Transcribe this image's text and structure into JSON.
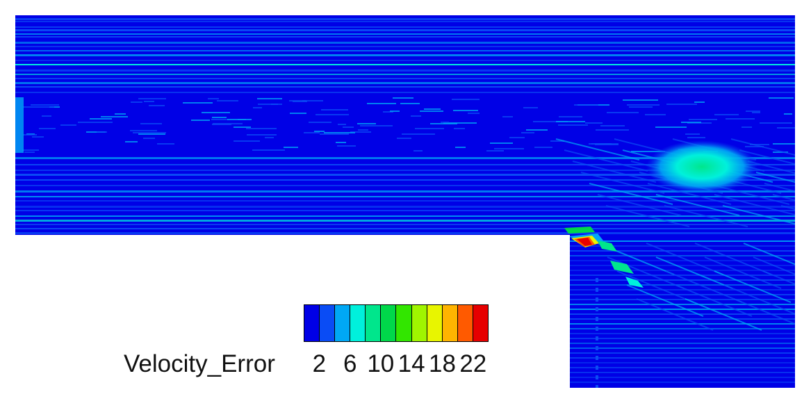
{
  "chart_data": {
    "type": "heatmap",
    "variable": "Velocity_Error",
    "colorbar": {
      "title": "Velocity_Error",
      "tick_labels": [
        "2",
        "6",
        "10",
        "14",
        "18",
        "22"
      ],
      "tick_values": [
        2,
        6,
        10,
        14,
        18,
        22
      ],
      "levels": [
        0,
        2,
        4,
        6,
        8,
        10,
        12,
        14,
        16,
        18,
        20,
        22,
        24
      ],
      "colors": [
        "#0000e6",
        "#0a4cf5",
        "#00a8f5",
        "#00f0dc",
        "#00e68c",
        "#00d84a",
        "#32e600",
        "#a0f500",
        "#e8f500",
        "#ffb400",
        "#ff5a00",
        "#e60000"
      ]
    },
    "description_fields": {
      "domain_shape": "backward-facing step (L-shaped)",
      "background_level": 1,
      "hotspots": [
        {
          "region": "step corner",
          "max_value": 22
        },
        {
          "region": "upper-right recirculation zone",
          "max_value": 8
        }
      ]
    }
  }
}
